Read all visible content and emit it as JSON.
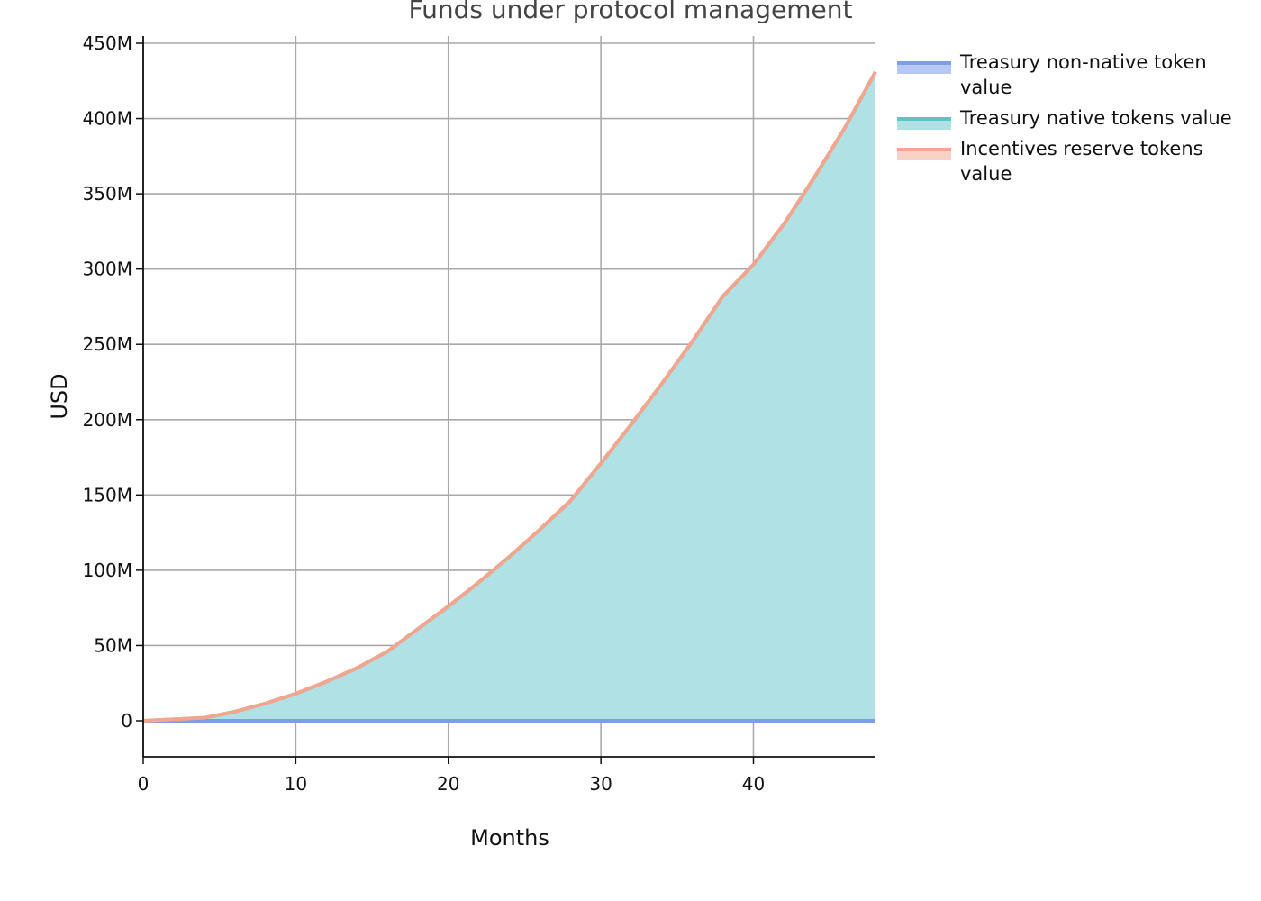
{
  "chart_data": {
    "type": "area",
    "title": "Funds under protocol management",
    "xlabel": "Months",
    "ylabel": "USD",
    "xlim": [
      0,
      48
    ],
    "ylim": [
      -25000000,
      450000000
    ],
    "x_ticks": [
      0,
      10,
      20,
      30,
      40
    ],
    "x_tick_labels": [
      "0",
      "10",
      "20",
      "30",
      "40"
    ],
    "y_ticks": [
      0,
      50000000,
      100000000,
      150000000,
      200000000,
      250000000,
      300000000,
      350000000,
      400000000,
      450000000
    ],
    "y_tick_labels": [
      "0",
      "50M",
      "100M",
      "150M",
      "200M",
      "250M",
      "300M",
      "350M",
      "400M",
      "450M"
    ],
    "grid": true,
    "stacked": true,
    "legend_position": "right",
    "x": [
      0,
      2,
      4,
      6,
      8,
      10,
      12,
      14,
      16,
      18,
      20,
      22,
      24,
      26,
      28,
      30,
      32,
      34,
      36,
      38,
      40,
      42,
      44,
      46,
      48
    ],
    "series": [
      {
        "name": "Treasury non-native token value",
        "color": "#7b9ee8",
        "fill": "#b8c8f4",
        "values": [
          0,
          0,
          0,
          0,
          0,
          0,
          0,
          0,
          0,
          0,
          0,
          0,
          0,
          0,
          0,
          0,
          0,
          0,
          0,
          0,
          0,
          0,
          0,
          0,
          0
        ]
      },
      {
        "name": "Treasury native tokens value",
        "color": "#5ec4c4",
        "fill": "#b0e1e4",
        "values": [
          0,
          1000000,
          2000000,
          6000000,
          11500000,
          18000000,
          26000000,
          35000000,
          46000000,
          61000000,
          76000000,
          92000000,
          109000000,
          127000000,
          146000000,
          171000000,
          197000000,
          224000000,
          252000000,
          282000000,
          303000000,
          330000000,
          361000000,
          394000000,
          431000000
        ]
      },
      {
        "name": "Incentives reserve tokens value",
        "color": "#f4a58e",
        "fill": "#f8d2c6",
        "values": [
          0,
          0,
          0,
          0,
          0,
          0,
          0,
          0,
          0,
          0,
          0,
          0,
          0,
          0,
          0,
          0,
          0,
          0,
          0,
          0,
          0,
          0,
          0,
          0,
          0
        ]
      }
    ]
  }
}
